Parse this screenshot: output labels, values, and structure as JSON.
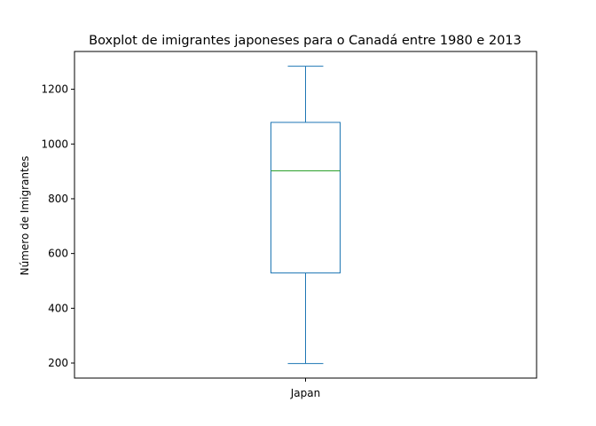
{
  "chart_data": {
    "type": "boxplot",
    "title": "Boxplot de imigrantes japoneses para o Canadá entre 1980 e 2013",
    "xlabel": "",
    "ylabel": "Número de Imigrantes",
    "categories": [
      "Japan"
    ],
    "boxes": [
      {
        "category": "Japan",
        "whisker_low": 198,
        "q1": 529,
        "median": 902,
        "q3": 1079,
        "whisker_high": 1284
      }
    ],
    "yticks": [
      200,
      400,
      600,
      800,
      1000,
      1200
    ],
    "ylim": [
      145,
      1338
    ],
    "grid": false,
    "colors": {
      "box": "#1f77b4",
      "median": "#2ca02c",
      "axis": "#000000"
    }
  }
}
